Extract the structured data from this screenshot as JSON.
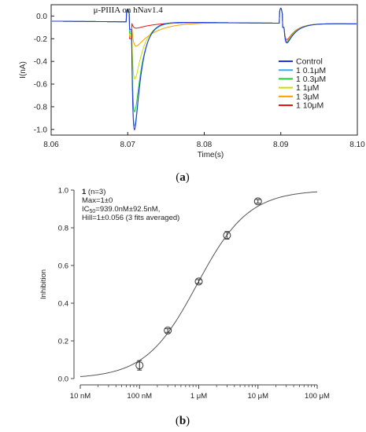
{
  "colors": {
    "control": "#2233dd",
    "c01": "#33aaff",
    "c03": "#22cc33",
    "c1": "#ccdd00",
    "c3": "#ff9900",
    "c10": "#ee1111"
  },
  "chart_data": [
    {
      "type": "line",
      "panel": "(a)",
      "panel_label_open": "(",
      "panel_label_letter": "a",
      "panel_label_close": ")",
      "annotation": "μ-PIIIA on hNav1.4",
      "xlabel": "Time(s)",
      "ylabel": "I(nA)",
      "xlim": [
        8.06,
        8.1
      ],
      "ylim": [
        -1.05,
        0.1
      ],
      "x_ticks": [
        "8.06",
        "8.07",
        "8.08",
        "8.09",
        "8.10"
      ],
      "y_ticks": [
        "0.0",
        "-0.2",
        "-0.4",
        "-0.6",
        "-0.8",
        "-1.0"
      ],
      "legend_position": "right",
      "series": [
        {
          "name": "Control",
          "color_key": "control",
          "peak1": -0.89,
          "peak2": -0.22
        },
        {
          "name": "1 0.1μM",
          "color_key": "c01",
          "peak1": -0.85,
          "peak2": -0.22
        },
        {
          "name": "1 0.3μM",
          "color_key": "c03",
          "peak1": -0.72,
          "peak2": -0.21
        },
        {
          "name": "1 1μM",
          "color_key": "c1",
          "peak1": -0.45,
          "peak2": -0.2
        },
        {
          "name": "1 3μM",
          "color_key": "c3",
          "peak1": -0.18,
          "peak2": -0.2
        },
        {
          "name": "1 10μM",
          "color_key": "c10",
          "peak1": -0.08,
          "peak2": -0.19
        }
      ]
    },
    {
      "type": "scatter",
      "panel": "(b)",
      "panel_label_open": "(",
      "panel_label_letter": "b",
      "panel_label_close": ")",
      "xlabel": "",
      "ylabel": "Inhibition",
      "x_scale": "log",
      "xlim_nM": [
        10,
        100000
      ],
      "ylim": [
        0.0,
        1.0
      ],
      "x_ticks": [
        "10 nM",
        "100 nM",
        "1 μM",
        "10 μM",
        "100 μM"
      ],
      "y_ticks": [
        "0.0",
        "0.2",
        "0.4",
        "0.6",
        "0.8",
        "1.0"
      ],
      "annotation_lines": {
        "compound": "1",
        "n": " (n=3)",
        "max": "Max=1±0",
        "ic50_prefix": "IC",
        "ic50_sub": "50",
        "ic50_rest": "=939.0nM±92.5nM,",
        "hill": "Hill=1±0.056 (3 fits averaged)"
      },
      "points": [
        {
          "x_nM": 100,
          "y": 0.07,
          "err": 0.025
        },
        {
          "x_nM": 300,
          "y": 0.255,
          "err": 0.01
        },
        {
          "x_nM": 1000,
          "y": 0.515,
          "err": 0.01
        },
        {
          "x_nM": 3000,
          "y": 0.76,
          "err": 0.02
        },
        {
          "x_nM": 10000,
          "y": 0.94,
          "err": 0.01
        }
      ],
      "fit": {
        "ic50_nM": 939.0,
        "hill": 1,
        "max": 1
      }
    }
  ]
}
